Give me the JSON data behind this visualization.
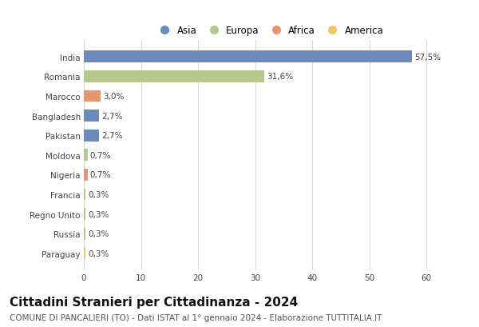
{
  "countries": [
    "India",
    "Romania",
    "Marocco",
    "Bangladesh",
    "Pakistan",
    "Moldova",
    "Nigeria",
    "Francia",
    "Regno Unito",
    "Russia",
    "Paraguay"
  ],
  "values": [
    57.5,
    31.6,
    3.0,
    2.7,
    2.7,
    0.7,
    0.7,
    0.3,
    0.3,
    0.3,
    0.3
  ],
  "labels": [
    "57,5%",
    "31,6%",
    "3,0%",
    "2,7%",
    "2,7%",
    "0,7%",
    "0,7%",
    "0,3%",
    "0,3%",
    "0,3%",
    "0,3%"
  ],
  "continents": [
    "Asia",
    "Europa",
    "Africa",
    "Asia",
    "Asia",
    "Europa",
    "Africa",
    "Europa",
    "Europa",
    "Europa",
    "America"
  ],
  "colors": {
    "Asia": "#6b8cba",
    "Europa": "#b5c98e",
    "Africa": "#e8956d",
    "America": "#f0c75e"
  },
  "legend_order": [
    "Asia",
    "Europa",
    "Africa",
    "America"
  ],
  "title": "Cittadini Stranieri per Cittadinanza - 2024",
  "subtitle": "COMUNE DI PANCALIERI (TO) - Dati ISTAT al 1° gennaio 2024 - Elaborazione TUTTITALIA.IT",
  "xlim": [
    0,
    65
  ],
  "xticks": [
    0,
    10,
    20,
    30,
    40,
    50,
    60
  ],
  "background_color": "#ffffff",
  "grid_color": "#d8d8d8",
  "bar_height": 0.6,
  "title_fontsize": 11,
  "subtitle_fontsize": 7.5,
  "label_fontsize": 7.5,
  "tick_fontsize": 7.5,
  "legend_fontsize": 8.5
}
